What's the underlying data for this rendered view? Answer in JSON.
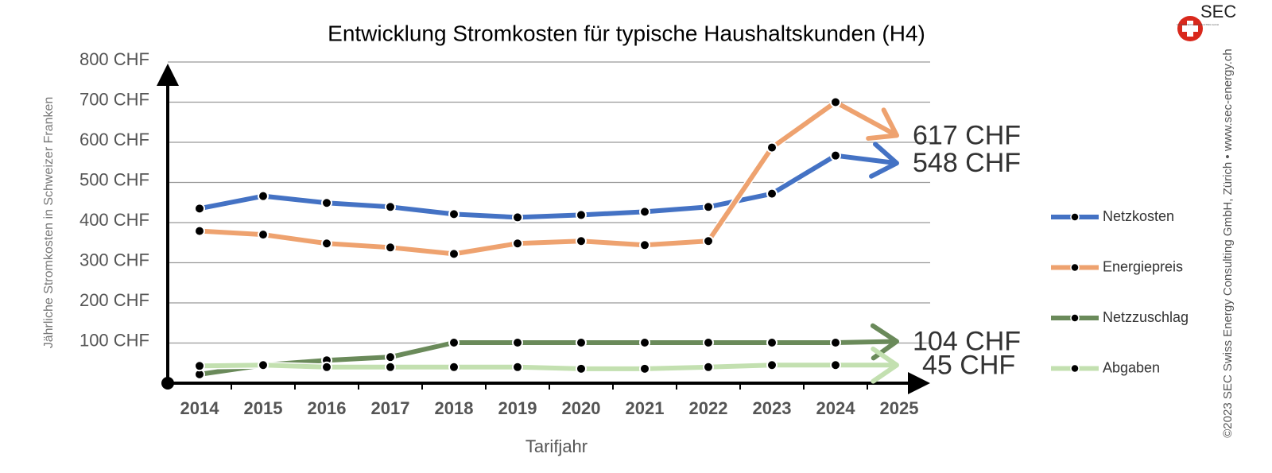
{
  "chart_data": {
    "type": "line",
    "title": "Entwicklung Stromkosten für typische Haushaltskunden (H4)",
    "y_label": "Jährliche Stromkosten in Schweizer Franken",
    "x_label": "Tarifjahr",
    "brand": "SEC",
    "brand_sub": "SWISS ENERGY CONSULTING GmbH",
    "copyright": "©2023 SEC Swiss Energy Consulting GmbH, Zürich • www.sec-energy.ch",
    "categories": [
      "2014",
      "2015",
      "2016",
      "2017",
      "2018",
      "2019",
      "2020",
      "2021",
      "2022",
      "2023",
      "2024",
      "2025"
    ],
    "ylim": [
      0,
      800
    ],
    "yticks": [
      {
        "value": 100,
        "label": "100 CHF"
      },
      {
        "value": 200,
        "label": "200 CHF"
      },
      {
        "value": 300,
        "label": "300 CHF"
      },
      {
        "value": 400,
        "label": "400 CHF"
      },
      {
        "value": 500,
        "label": "500 CHF"
      },
      {
        "value": 600,
        "label": "600 CHF"
      },
      {
        "value": 700,
        "label": "700 CHF"
      },
      {
        "value": 800,
        "label": "800 CHF"
      }
    ],
    "grid": true,
    "legend": "right",
    "series": [
      {
        "name": "Netzkosten",
        "color": "#4472c4",
        "values": [
          435,
          466,
          449,
          439,
          421,
          413,
          419,
          427,
          439,
          472,
          567,
          548
        ],
        "value_labels": [
          null,
          null,
          null,
          null,
          null,
          null,
          null,
          null,
          null,
          null,
          null,
          "548 CHF"
        ]
      },
      {
        "name": "Energiepreis",
        "color": "#eea26f",
        "values": [
          379,
          370,
          348,
          338,
          322,
          348,
          354,
          344,
          354,
          587,
          700,
          617
        ],
        "value_labels": [
          null,
          null,
          null,
          null,
          null,
          null,
          null,
          null,
          null,
          null,
          null,
          "617 CHF"
        ]
      },
      {
        "name": "Netzzuschlag",
        "color": "#6a8a5a",
        "values": [
          22,
          45,
          57,
          65,
          101,
          101,
          101,
          101,
          101,
          101,
          101,
          104
        ],
        "value_labels": [
          null,
          null,
          null,
          null,
          null,
          null,
          null,
          null,
          null,
          null,
          null,
          "104 CHF"
        ]
      },
      {
        "name": "Abgaben",
        "color": "#c3e0b0",
        "values": [
          43,
          45,
          40,
          40,
          40,
          40,
          36,
          36,
          40,
          45,
          45,
          45
        ],
        "value_labels": [
          null,
          null,
          null,
          null,
          null,
          null,
          null,
          null,
          null,
          null,
          null,
          "45 CHF"
        ]
      }
    ]
  }
}
